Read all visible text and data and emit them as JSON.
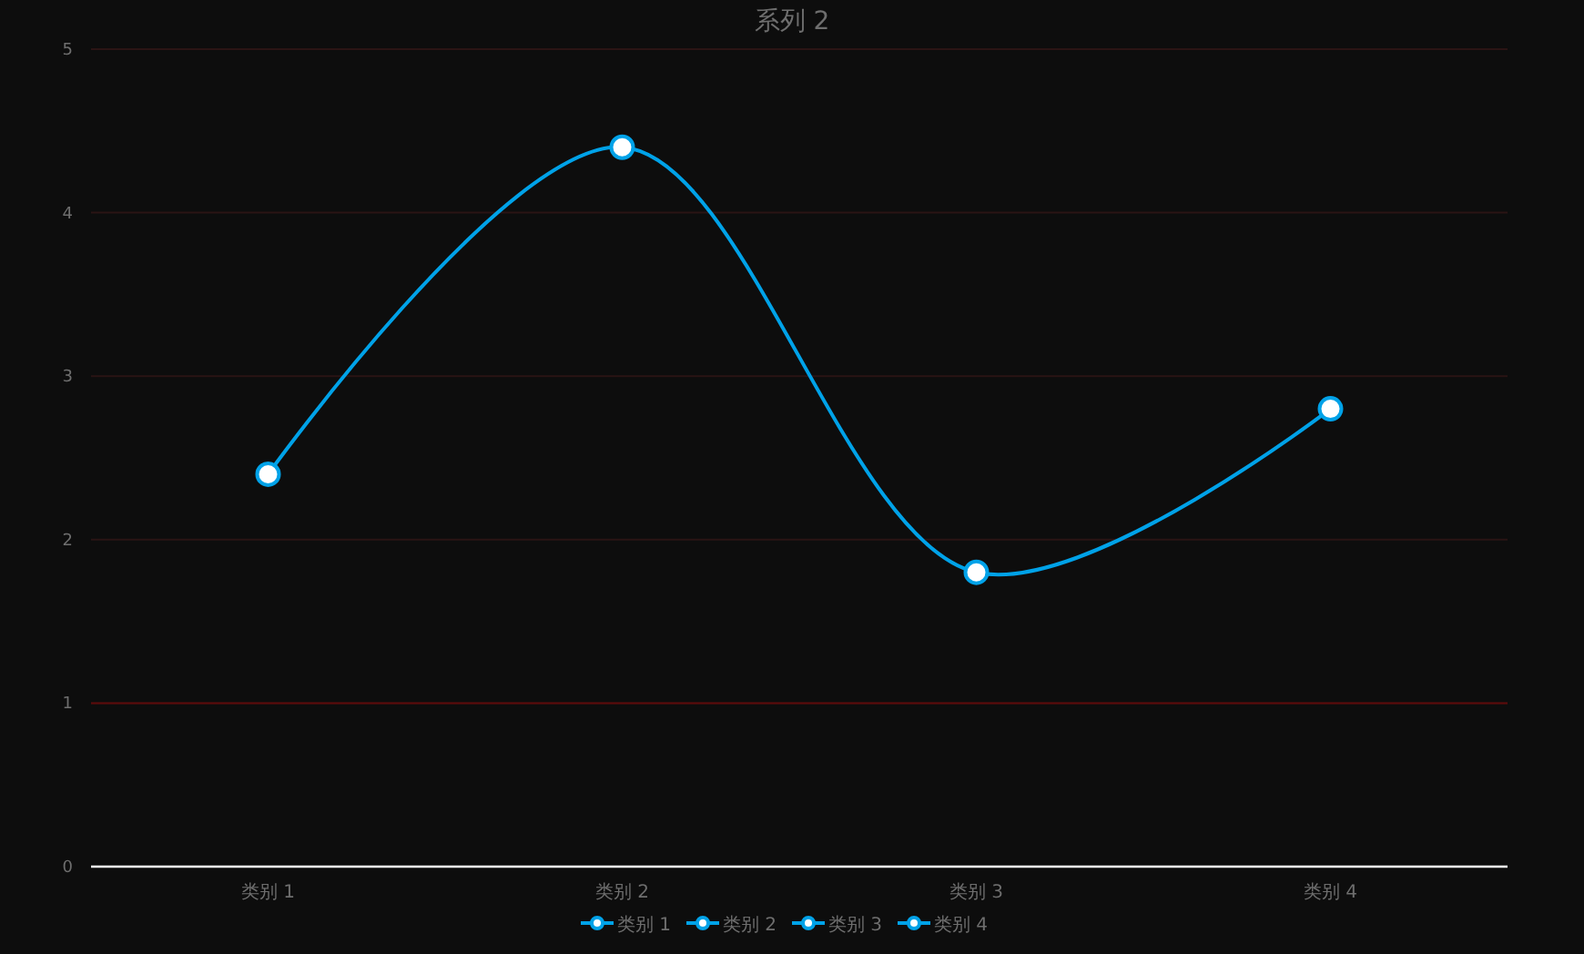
{
  "chart_data": {
    "type": "line",
    "title": "系列 2",
    "categories": [
      "类别 1",
      "类别 2",
      "类别 3",
      "类别 4"
    ],
    "series": [
      {
        "color": "#00a2e8",
        "values": [
          2.4,
          4.4,
          1.8,
          2.8
        ]
      }
    ],
    "colors": [
      "#00a2e8",
      "#00a2e8",
      "#00a2e8",
      "#00a2e8"
    ],
    "ylim": [
      0,
      5
    ],
    "yticks": [
      0,
      1,
      2,
      3,
      4,
      5
    ],
    "grid": "y",
    "marker": "circle",
    "line_style": "solid",
    "ref_lines": [
      {
        "axis": "y",
        "value": 1,
        "color": "#5c0a0a"
      }
    ]
  }
}
